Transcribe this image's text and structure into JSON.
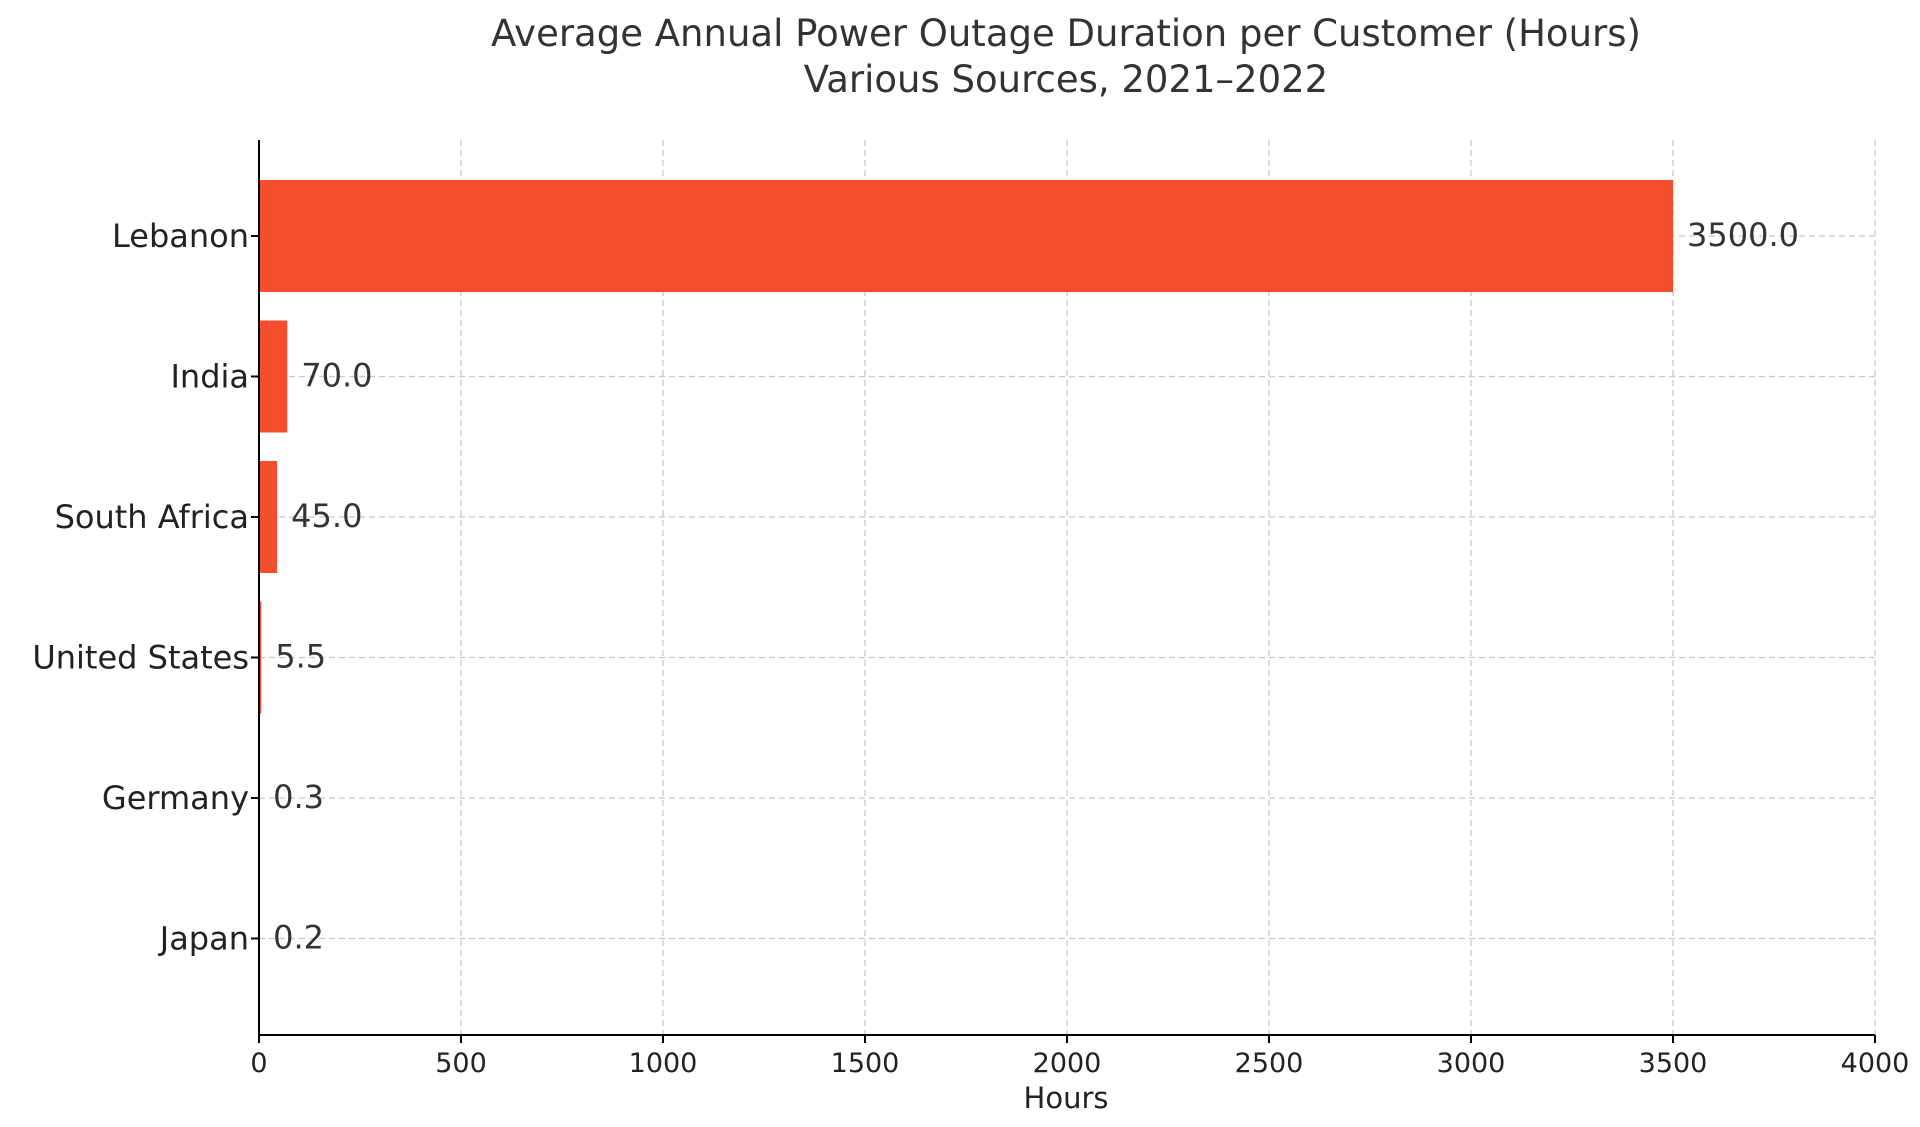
{
  "chart_data": {
    "type": "bar",
    "orientation": "horizontal",
    "title": "Average Annual Power Outage Duration per Customer (Hours)",
    "subtitle": "Various Sources, 2021–2022",
    "xlabel": "Hours",
    "ylabel": "",
    "categories": [
      "Lebanon",
      "India",
      "South Africa",
      "United States",
      "Germany",
      "Japan"
    ],
    "values": [
      3500.0,
      70.0,
      45.0,
      5.5,
      0.3,
      0.2
    ],
    "value_labels": [
      "3500.0",
      "70.0",
      "45.0",
      "5.5",
      "0.3",
      "0.2"
    ],
    "xlim": [
      0,
      4000
    ],
    "xticks": [
      "0",
      "500",
      "1000",
      "1500",
      "2000",
      "2500",
      "3000",
      "3500",
      "4000"
    ],
    "xtick_values": [
      0,
      500,
      1000,
      1500,
      2000,
      2500,
      3000,
      3500,
      4000
    ],
    "bar_color": "#f44e2e",
    "grid": true,
    "legend": "none"
  }
}
